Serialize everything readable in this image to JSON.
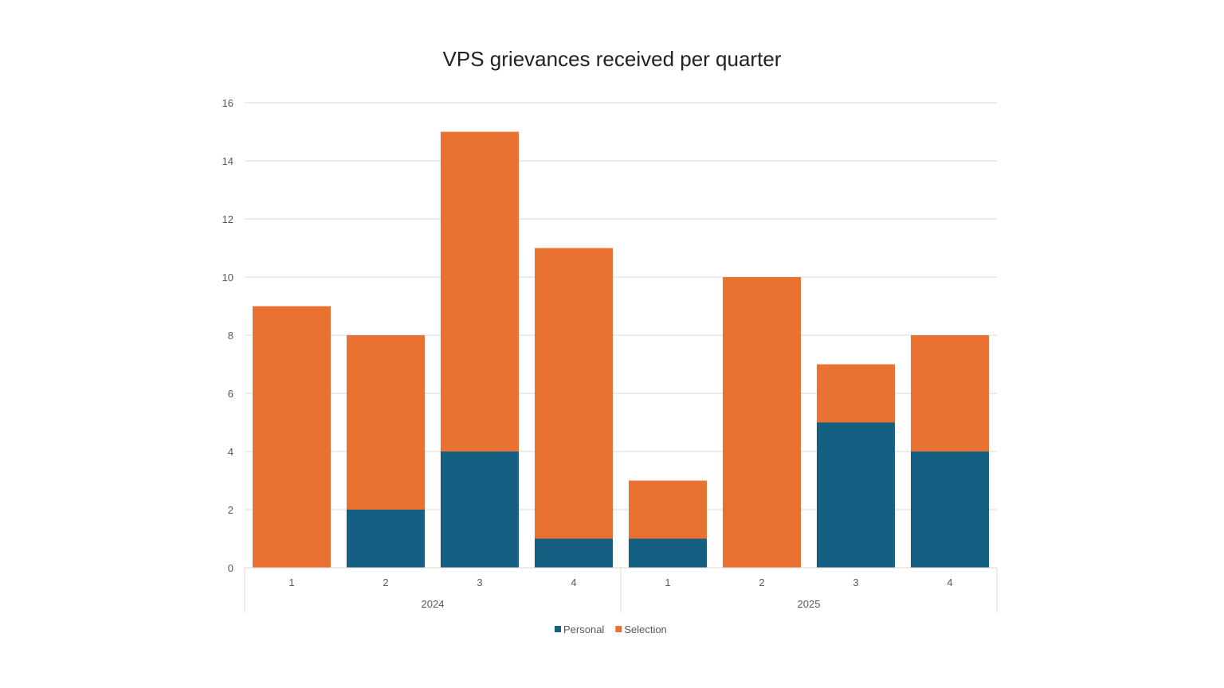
{
  "chart_data": {
    "type": "bar",
    "stacked": true,
    "title": "VPS grievances received per quarter",
    "xlabel": "",
    "ylabel": "",
    "ylim": [
      0,
      16
    ],
    "yticks": [
      0,
      2,
      4,
      6,
      8,
      10,
      12,
      14,
      16
    ],
    "grid": true,
    "legend_placement": "bottom",
    "categories": [
      "1",
      "2",
      "3",
      "4",
      "1",
      "2",
      "3",
      "4"
    ],
    "groups": [
      {
        "label": "2024",
        "categories": [
          "1",
          "2",
          "3",
          "4"
        ]
      },
      {
        "label": "2025",
        "categories": [
          "1",
          "2",
          "3",
          "4"
        ]
      }
    ],
    "series": [
      {
        "name": "Personal",
        "color": "#156082",
        "values": [
          0,
          2,
          4,
          1,
          1,
          0,
          5,
          4
        ]
      },
      {
        "name": "Selection",
        "color": "#E97132",
        "values": [
          9,
          6,
          11,
          10,
          2,
          10,
          2,
          4
        ]
      }
    ]
  }
}
